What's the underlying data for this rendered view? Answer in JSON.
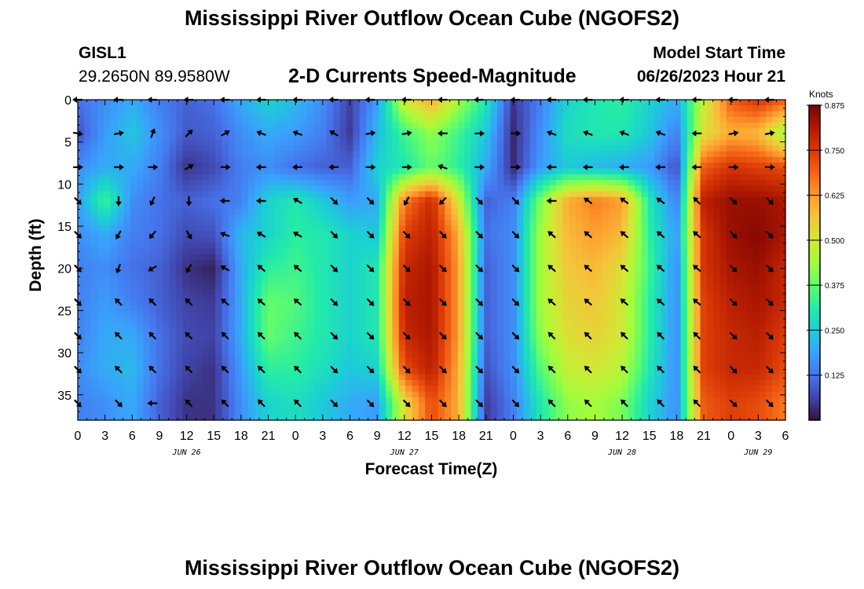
{
  "header": {
    "title": "Mississippi River Outflow Ocean Cube (NGOFS2)",
    "station": "GISL1",
    "coords": "29.2650N  89.9580W",
    "subtitle": "2-D Currents Speed-Magnitude",
    "model_label": "Model Start Time",
    "model_time": "06/26/2023 Hour 21"
  },
  "footer": {
    "title": "Mississippi River Outflow Ocean Cube (NGOFS2)"
  },
  "chart_data": {
    "type": "heatmap",
    "xlabel": "Forecast Time(Z)",
    "ylabel": "Depth (ft)",
    "colorbar_label": "Knots",
    "x_tick_labels": [
      "0",
      "3",
      "6",
      "9",
      "12",
      "15",
      "18",
      "21",
      "0",
      "3",
      "6",
      "9",
      "12",
      "15",
      "18",
      "21",
      "0",
      "3",
      "6",
      "9",
      "12",
      "15",
      "18",
      "21",
      "0",
      "3",
      "6"
    ],
    "date_labels": [
      {
        "label": "JUN 26",
        "x_hours": 12
      },
      {
        "label": "JUN 27",
        "x_hours": 36
      },
      {
        "label": "JUN 28",
        "x_hours": 60
      },
      {
        "label": "JUN 29",
        "x_hours": 75
      }
    ],
    "x_range_hours": [
      0,
      78
    ],
    "y_ticks": [
      0,
      5,
      10,
      15,
      20,
      25,
      30,
      35
    ],
    "y_range_ft": [
      0,
      38
    ],
    "colorbar_ticks": [
      "0.875",
      "0.750",
      "0.625",
      "0.500",
      "0.375",
      "0.250",
      "0.125"
    ],
    "colorbar_range": [
      0.0,
      0.875
    ],
    "colormap": [
      "#30123b",
      "#4145ab",
      "#4675ed",
      "#39a2fc",
      "#1bcfd4",
      "#24eca6",
      "#61fc6c",
      "#a4fc3b",
      "#d1e834",
      "#f3c63a",
      "#fe9b2d",
      "#f36315",
      "#d93806",
      "#b11901",
      "#7a0402"
    ],
    "speed_grid": {
      "times_hours": [
        0,
        3,
        6,
        9,
        12,
        15,
        18,
        21,
        24,
        27,
        30,
        33,
        36,
        39,
        42,
        45,
        48,
        51,
        54,
        57,
        60,
        63,
        66,
        69,
        72,
        75,
        78
      ],
      "depths_ft": [
        0,
        4,
        8,
        12,
        16,
        20,
        24,
        28,
        32,
        36
      ],
      "values_knots": [
        [
          0.12,
          0.16,
          0.2,
          0.14,
          0.1,
          0.12,
          0.2,
          0.26,
          0.22,
          0.16,
          0.06,
          0.18,
          0.5,
          0.6,
          0.44,
          0.3,
          0.05,
          0.14,
          0.26,
          0.3,
          0.32,
          0.26,
          0.2,
          0.48,
          0.7,
          0.76,
          0.7
        ],
        [
          0.08,
          0.18,
          0.24,
          0.16,
          0.09,
          0.1,
          0.16,
          0.2,
          0.18,
          0.14,
          0.05,
          0.22,
          0.34,
          0.42,
          0.34,
          0.24,
          0.03,
          0.16,
          0.28,
          0.3,
          0.3,
          0.24,
          0.14,
          0.52,
          0.6,
          0.58,
          0.42
        ],
        [
          0.16,
          0.2,
          0.2,
          0.14,
          0.04,
          0.07,
          0.14,
          0.16,
          0.12,
          0.1,
          0.1,
          0.26,
          0.3,
          0.38,
          0.32,
          0.2,
          0.03,
          0.18,
          0.24,
          0.22,
          0.2,
          0.18,
          0.08,
          0.7,
          0.76,
          0.74,
          0.72
        ],
        [
          0.18,
          0.34,
          0.16,
          0.12,
          0.1,
          0.12,
          0.14,
          0.26,
          0.3,
          0.24,
          0.18,
          0.2,
          0.66,
          0.78,
          0.5,
          0.1,
          0.14,
          0.4,
          0.6,
          0.66,
          0.62,
          0.3,
          0.14,
          0.8,
          0.84,
          0.84,
          0.82
        ],
        [
          0.16,
          0.2,
          0.14,
          0.12,
          0.07,
          0.08,
          0.22,
          0.26,
          0.32,
          0.3,
          0.26,
          0.24,
          0.74,
          0.8,
          0.6,
          0.12,
          0.16,
          0.44,
          0.58,
          0.62,
          0.58,
          0.32,
          0.18,
          0.76,
          0.84,
          0.86,
          0.82
        ],
        [
          0.14,
          0.16,
          0.12,
          0.1,
          0.04,
          0.02,
          0.2,
          0.32,
          0.34,
          0.3,
          0.26,
          0.3,
          0.78,
          0.82,
          0.62,
          0.1,
          0.16,
          0.44,
          0.56,
          0.58,
          0.52,
          0.34,
          0.16,
          0.76,
          0.82,
          0.84,
          0.78
        ],
        [
          0.14,
          0.18,
          0.14,
          0.1,
          0.06,
          0.05,
          0.2,
          0.38,
          0.36,
          0.3,
          0.26,
          0.3,
          0.8,
          0.82,
          0.62,
          0.1,
          0.16,
          0.44,
          0.54,
          0.56,
          0.5,
          0.32,
          0.16,
          0.74,
          0.8,
          0.82,
          0.78
        ],
        [
          0.14,
          0.2,
          0.2,
          0.12,
          0.07,
          0.06,
          0.2,
          0.38,
          0.34,
          0.3,
          0.26,
          0.3,
          0.78,
          0.82,
          0.62,
          0.1,
          0.16,
          0.42,
          0.52,
          0.54,
          0.5,
          0.32,
          0.16,
          0.74,
          0.78,
          0.8,
          0.74
        ],
        [
          0.16,
          0.2,
          0.22,
          0.12,
          0.06,
          0.04,
          0.18,
          0.32,
          0.32,
          0.28,
          0.24,
          0.26,
          0.72,
          0.8,
          0.6,
          0.08,
          0.16,
          0.36,
          0.48,
          0.5,
          0.46,
          0.3,
          0.16,
          0.74,
          0.78,
          0.78,
          0.72
        ],
        [
          0.14,
          0.16,
          0.2,
          0.1,
          0.04,
          0.04,
          0.16,
          0.26,
          0.28,
          0.24,
          0.2,
          0.18,
          0.52,
          0.72,
          0.6,
          0.05,
          0.14,
          0.3,
          0.42,
          0.44,
          0.4,
          0.26,
          0.16,
          0.7,
          0.74,
          0.72,
          0.66
        ]
      ]
    },
    "vector_grid": {
      "times_hours": [
        0,
        4.5,
        8.25,
        12.25,
        16.25,
        20.25,
        24.25,
        28.25,
        32.25,
        36.25,
        40.25,
        44.25,
        48.25,
        52.25,
        56.25,
        60.25,
        64.25,
        68.25,
        72.25,
        76.25
      ],
      "depths_ft": [
        0,
        4,
        8,
        12,
        16,
        20,
        24,
        28,
        32,
        36
      ],
      "direction_deg_compass": [
        [
          270,
          270,
          270,
          270,
          270,
          270,
          270,
          270,
          270,
          270,
          270,
          270,
          270,
          270,
          270,
          270,
          270,
          270,
          270,
          270
        ],
        [
          100,
          80,
          20,
          45,
          60,
          290,
          290,
          300,
          80,
          80,
          270,
          90,
          90,
          290,
          290,
          290,
          290,
          270,
          80,
          80
        ],
        [
          90,
          90,
          90,
          60,
          90,
          270,
          270,
          270,
          90,
          90,
          290,
          90,
          90,
          270,
          270,
          270,
          270,
          270,
          90,
          90
        ],
        [
          135,
          180,
          205,
          180,
          270,
          270,
          300,
          135,
          135,
          210,
          225,
          135,
          135,
          270,
          305,
          305,
          305,
          315,
          135,
          135
        ],
        [
          135,
          210,
          220,
          150,
          290,
          300,
          300,
          135,
          135,
          135,
          135,
          135,
          135,
          310,
          310,
          310,
          310,
          310,
          135,
          135
        ],
        [
          135,
          200,
          240,
          210,
          300,
          310,
          310,
          135,
          135,
          135,
          135,
          135,
          135,
          310,
          310,
          310,
          310,
          310,
          135,
          135
        ],
        [
          135,
          315,
          315,
          315,
          310,
          310,
          310,
          135,
          135,
          135,
          135,
          135,
          135,
          310,
          310,
          310,
          310,
          310,
          135,
          135
        ],
        [
          135,
          315,
          315,
          315,
          315,
          315,
          315,
          135,
          135,
          135,
          135,
          135,
          135,
          315,
          315,
          315,
          315,
          315,
          135,
          135
        ],
        [
          135,
          315,
          315,
          315,
          315,
          315,
          315,
          135,
          135,
          135,
          135,
          135,
          135,
          315,
          315,
          315,
          315,
          315,
          135,
          135
        ],
        [
          135,
          135,
          270,
          315,
          315,
          315,
          315,
          135,
          135,
          135,
          135,
          135,
          135,
          315,
          315,
          315,
          315,
          315,
          135,
          135
        ]
      ]
    }
  }
}
